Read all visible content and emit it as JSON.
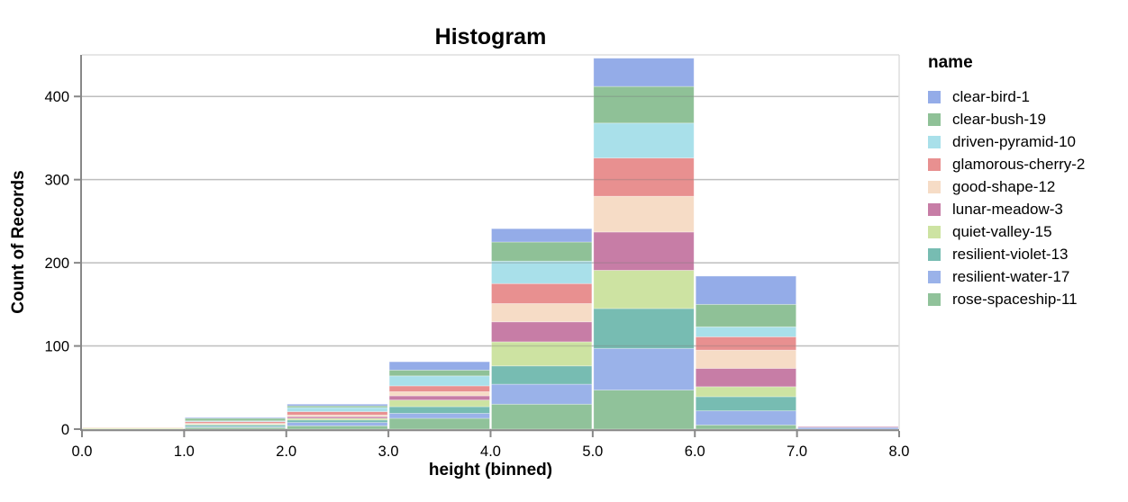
{
  "chart_data": {
    "type": "bar",
    "stacked": true,
    "title": "Histogram",
    "xlabel": "height (binned)",
    "ylabel": "Count of Records",
    "x_tick_labels": [
      "0.0",
      "1.0",
      "2.0",
      "3.0",
      "4.0",
      "5.0",
      "6.0",
      "7.0",
      "8.0"
    ],
    "y_ticks": [
      0,
      100,
      200,
      300,
      400
    ],
    "ylim": [
      0,
      450
    ],
    "bins": 8,
    "grid": "horizontal",
    "legend_position": "right",
    "stack_order": "first-series-on-top",
    "series": [
      {
        "name": "clear-bird-1",
        "color": "#94ace8",
        "values": [
          0,
          1,
          2,
          10,
          16,
          34,
          34,
          0
        ]
      },
      {
        "name": "clear-bush-19",
        "color": "#8fc197",
        "values": [
          0,
          3,
          2,
          7,
          23,
          44,
          27,
          0
        ]
      },
      {
        "name": "driven-pyramid-10",
        "color": "#a9e0ea",
        "values": [
          0,
          1,
          5,
          12,
          27,
          42,
          12,
          0
        ]
      },
      {
        "name": "glamorous-cherry-2",
        "color": "#e89090",
        "values": [
          0,
          2,
          4,
          7,
          24,
          46,
          16,
          0
        ]
      },
      {
        "name": "good-shape-12",
        "color": "#f6dcc6",
        "values": [
          1,
          1,
          2,
          5,
          22,
          43,
          22,
          0
        ]
      },
      {
        "name": "lunar-meadow-3",
        "color": "#c77da6",
        "values": [
          0,
          0,
          2,
          5,
          24,
          46,
          22,
          1
        ]
      },
      {
        "name": "quiet-valley-15",
        "color": "#cde3a2",
        "values": [
          1,
          1,
          2,
          8,
          29,
          46,
          12,
          0
        ]
      },
      {
        "name": "resilient-violet-13",
        "color": "#77bcb2",
        "values": [
          0,
          2,
          3,
          8,
          22,
          48,
          17,
          0
        ]
      },
      {
        "name": "resilient-water-17",
        "color": "#9ab2e9",
        "values": [
          0,
          1,
          4,
          6,
          24,
          50,
          17,
          2
        ]
      },
      {
        "name": "rose-spaceship-11",
        "color": "#90c29a",
        "values": [
          0,
          2,
          4,
          13,
          30,
          47,
          5,
          0
        ]
      }
    ]
  },
  "legend": {
    "title": "name"
  },
  "style_colors": {
    "axis_domain": "#888888",
    "gridline_over_bars": "rgba(120,120,120,0.30)",
    "frame": "#dddddd",
    "text": "#000000"
  }
}
